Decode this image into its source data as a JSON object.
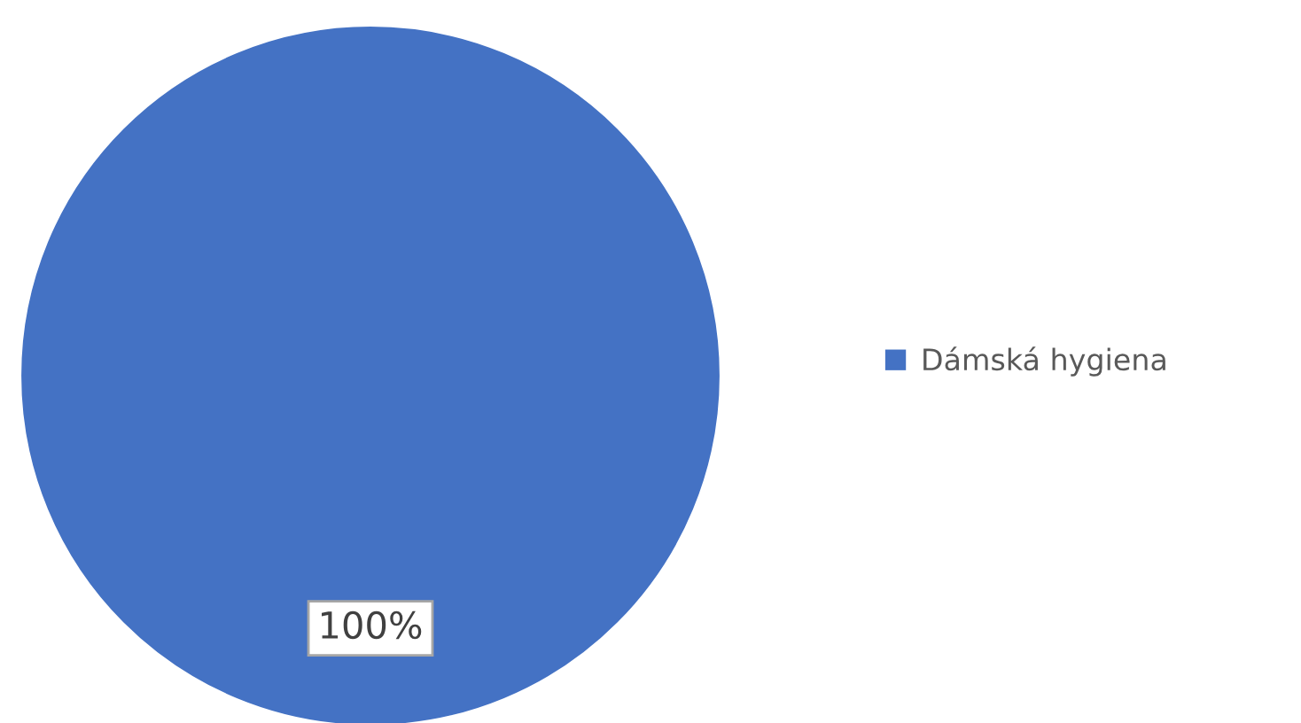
{
  "chart_data": {
    "type": "pie",
    "categories": [
      "Dámská hygiena"
    ],
    "values": [
      100
    ],
    "colors": [
      "#4472c4"
    ],
    "value_labels": [
      "100%"
    ],
    "legend": "right"
  }
}
